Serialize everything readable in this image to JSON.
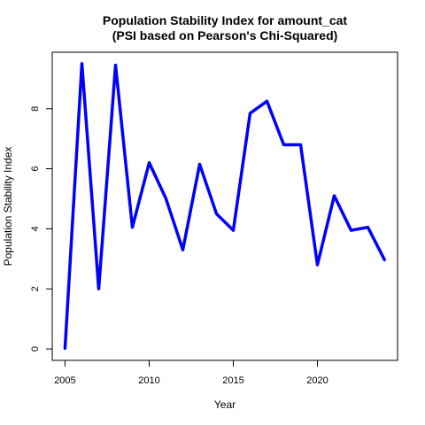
{
  "chart_data": {
    "type": "line",
    "title": "Population Stability Index for amount_cat",
    "subtitle": "(PSI based on Pearson's Chi-Squared)",
    "xlabel": "Year",
    "ylabel": "Population Stability Index",
    "x": [
      2005,
      2006,
      2007,
      2008,
      2009,
      2010,
      2011,
      2012,
      2013,
      2014,
      2015,
      2016,
      2017,
      2018,
      2019,
      2020,
      2021,
      2022,
      2023,
      2024
    ],
    "series": [
      {
        "values": [
          0.0,
          9.5,
          2.0,
          9.45,
          4.05,
          6.2,
          5.0,
          3.3,
          6.15,
          4.5,
          3.95,
          7.85,
          8.25,
          6.8,
          6.8,
          2.8,
          5.1,
          3.95,
          4.05,
          2.95
        ],
        "color": "#0000ff"
      }
    ],
    "xticks": [
      "2005",
      "2010",
      "2015",
      "2020"
    ],
    "yticks": [
      "0",
      "2",
      "4",
      "6",
      "8"
    ],
    "xlim": [
      2004.24,
      2024.76
    ],
    "ylim": [
      -0.38,
      9.88
    ],
    "grid": false,
    "legend": "none"
  }
}
